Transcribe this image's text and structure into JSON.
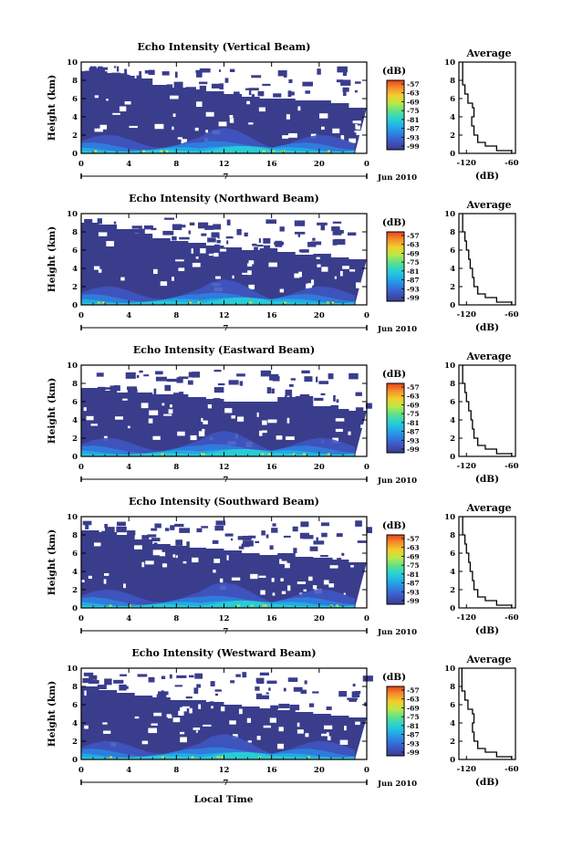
{
  "figure": {
    "xlabel": "Local Time",
    "date_label": "Jun 2010",
    "day_marker": "7"
  },
  "colors": {
    "background_echo": "#3a3d8c",
    "scale": [
      "#3a3d8c",
      "#3f55c0",
      "#2f7fe0",
      "#22aee8",
      "#2ad2d0",
      "#5fe08a",
      "#b8e84a",
      "#f2d02c",
      "#f5902a",
      "#e8421e"
    ]
  },
  "colorbar": {
    "label": "(dB)",
    "ticks": [
      "-57",
      "-63",
      "-69",
      "-75",
      "-81",
      "-87",
      "-93",
      "-99"
    ]
  },
  "chart_data": [
    {
      "type": "heatmap",
      "title": "Echo Intensity (Vertical Beam)",
      "ylabel": "Height (km)",
      "x_ticks": [
        "0",
        "4",
        "8",
        "12",
        "16",
        "20",
        "0"
      ],
      "y_ticks": [
        "0",
        "2",
        "4",
        "6",
        "8",
        "10"
      ],
      "xlim": [
        0,
        24
      ],
      "ylim": [
        0,
        10
      ],
      "echo_top_km": [
        9.0,
        8.8,
        8.5,
        8.2,
        7.5,
        7.2,
        7.0,
        6.8,
        6.5,
        6.2,
        6.0,
        6.0,
        5.8,
        5.8,
        5.5,
        5.0
      ],
      "profile": {
        "title": "Average",
        "xlabel": "(dB)",
        "x_ticks": [
          "-120",
          "-60"
        ],
        "xlim": [
          -130,
          -55
        ],
        "y_ticks": [
          "0",
          "2",
          "4",
          "6",
          "8",
          "10"
        ],
        "ylim": [
          0,
          10
        ],
        "heights": [
          0.3,
          0.8,
          1.2,
          2.0,
          3.0,
          4.0,
          5.0,
          5.5,
          6.5,
          7.5,
          8.5
        ],
        "values": [
          -60,
          -80,
          -95,
          -105,
          -110,
          -113,
          -110,
          -112,
          -118,
          -122,
          -125
        ]
      }
    },
    {
      "type": "heatmap",
      "title": "Echo Intensity (Northward Beam)",
      "ylabel": "Height (km)",
      "x_ticks": [
        "0",
        "4",
        "8",
        "12",
        "16",
        "20",
        "0"
      ],
      "y_ticks": [
        "0",
        "2",
        "4",
        "6",
        "8",
        "10"
      ],
      "xlim": [
        0,
        24
      ],
      "ylim": [
        0,
        10
      ],
      "echo_top_km": [
        9.0,
        8.8,
        8.3,
        7.8,
        7.3,
        7.0,
        6.8,
        6.5,
        6.3,
        6.0,
        6.2,
        5.8,
        5.5,
        5.6,
        5.2,
        5.0
      ],
      "profile": {
        "title": "Average",
        "xlabel": "(dB)",
        "x_ticks": [
          "-120",
          "-60"
        ],
        "xlim": [
          -130,
          -55
        ],
        "y_ticks": [
          "0",
          "2",
          "4",
          "6",
          "8",
          "10"
        ],
        "ylim": [
          0,
          10
        ],
        "heights": [
          0.3,
          0.8,
          1.2,
          2.0,
          3.0,
          4.0,
          5.0,
          6.0,
          7.0,
          8.0,
          9.0
        ],
        "values": [
          -60,
          -80,
          -95,
          -105,
          -110,
          -112,
          -115,
          -117,
          -120,
          -122,
          -125
        ]
      }
    },
    {
      "type": "heatmap",
      "title": "Echo Intensity (Eastward Beam)",
      "ylabel": "Height (km)",
      "x_ticks": [
        "0",
        "4",
        "8",
        "12",
        "16",
        "20",
        "0"
      ],
      "y_ticks": [
        "0",
        "2",
        "4",
        "6",
        "8",
        "10"
      ],
      "xlim": [
        0,
        24
      ],
      "ylim": [
        0,
        10
      ],
      "echo_top_km": [
        7.5,
        7.2,
        7.0,
        7.0,
        6.8,
        6.8,
        6.5,
        6.3,
        6.0,
        6.0,
        6.0,
        6.5,
        6.6,
        5.5,
        5.2,
        5.0
      ],
      "profile": {
        "title": "Average",
        "xlabel": "(dB)",
        "x_ticks": [
          "-120",
          "-60"
        ],
        "xlim": [
          -130,
          -55
        ],
        "y_ticks": [
          "0",
          "2",
          "4",
          "6",
          "8",
          "10"
        ],
        "ylim": [
          0,
          10
        ],
        "heights": [
          0.3,
          0.8,
          1.2,
          2.0,
          3.0,
          4.0,
          5.0,
          6.0,
          7.0,
          8.0,
          9.0
        ],
        "values": [
          -60,
          -80,
          -95,
          -105,
          -110,
          -112,
          -114,
          -117,
          -120,
          -122,
          -125
        ]
      }
    },
    {
      "type": "heatmap",
      "title": "Echo Intensity (Southward Beam)",
      "ylabel": "Height (km)",
      "x_ticks": [
        "0",
        "4",
        "8",
        "12",
        "16",
        "20",
        "0"
      ],
      "y_ticks": [
        "0",
        "2",
        "4",
        "6",
        "8",
        "10"
      ],
      "xlim": [
        0,
        24
      ],
      "ylim": [
        0,
        10
      ],
      "echo_top_km": [
        8.5,
        8.3,
        8.0,
        7.5,
        7.0,
        6.8,
        6.6,
        6.5,
        6.3,
        6.0,
        5.8,
        6.0,
        5.6,
        5.5,
        5.3,
        5.0
      ],
      "profile": {
        "title": "Average",
        "xlabel": "(dB)",
        "x_ticks": [
          "-120",
          "-60"
        ],
        "xlim": [
          -130,
          -55
        ],
        "y_ticks": [
          "0",
          "2",
          "4",
          "6",
          "8",
          "10"
        ],
        "ylim": [
          0,
          10
        ],
        "heights": [
          0.3,
          0.8,
          1.2,
          2.0,
          3.0,
          4.0,
          5.0,
          6.0,
          7.0,
          8.0,
          9.0
        ],
        "values": [
          -60,
          -80,
          -95,
          -105,
          -110,
          -112,
          -115,
          -117,
          -120,
          -122,
          -125
        ]
      }
    },
    {
      "type": "heatmap",
      "title": "Echo Intensity (Westward Beam)",
      "ylabel": "Height (km)",
      "x_ticks": [
        "0",
        "4",
        "8",
        "12",
        "16",
        "20",
        "0"
      ],
      "y_ticks": [
        "0",
        "2",
        "4",
        "6",
        "8",
        "10"
      ],
      "xlim": [
        0,
        24
      ],
      "ylim": [
        0,
        10
      ],
      "echo_top_km": [
        8.0,
        7.6,
        7.3,
        7.0,
        6.8,
        6.5,
        6.5,
        6.3,
        6.0,
        5.8,
        5.6,
        5.4,
        5.2,
        5.0,
        4.8,
        4.6
      ],
      "profile": {
        "title": "Average",
        "xlabel": "(dB)",
        "x_ticks": [
          "-120",
          "-60"
        ],
        "xlim": [
          -130,
          -55
        ],
        "y_ticks": [
          "0",
          "2",
          "4",
          "6",
          "8",
          "10"
        ],
        "ylim": [
          0,
          10
        ],
        "heights": [
          0.3,
          0.8,
          1.2,
          2.0,
          3.0,
          4.0,
          5.0,
          5.5,
          6.5,
          7.5,
          9.0
        ],
        "values": [
          -60,
          -80,
          -95,
          -105,
          -110,
          -112,
          -110,
          -112,
          -118,
          -122,
          -126
        ]
      }
    }
  ]
}
